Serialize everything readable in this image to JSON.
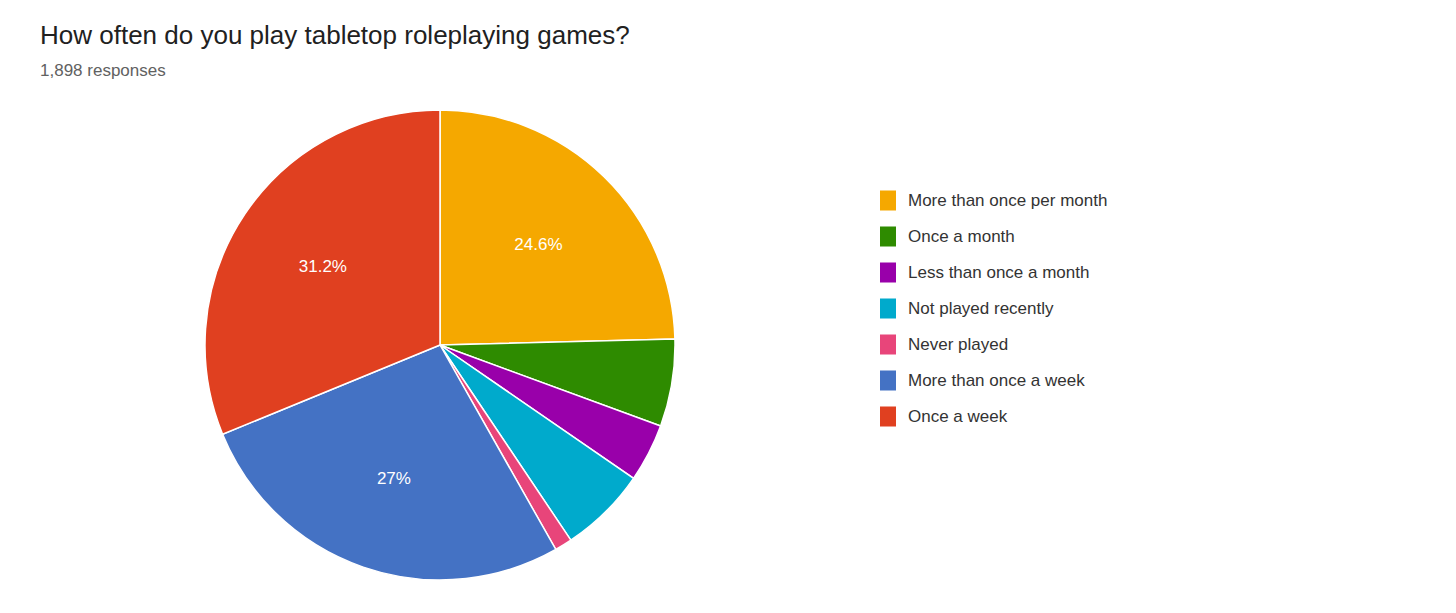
{
  "chart_data": {
    "type": "pie",
    "title": "How often do you play tabletop roleplaying games?",
    "subtitle": "1,898 responses",
    "categories": [
      "More than once per month",
      "Once a month",
      "Less than once a month",
      "Not played recently",
      "Never played",
      "More than once a week",
      "Once a week"
    ],
    "values": [
      24.6,
      6.0,
      4.0,
      6.0,
      1.2,
      27.0,
      31.2
    ],
    "value_labels": [
      "24.6%",
      null,
      null,
      null,
      null,
      "27%",
      "31.2%"
    ],
    "colors": [
      "#F5A800",
      "#2E8B00",
      "#9900AA",
      "#00AACC",
      "#E8457A",
      "#4472C4",
      "#E04020"
    ],
    "legend": "right"
  }
}
